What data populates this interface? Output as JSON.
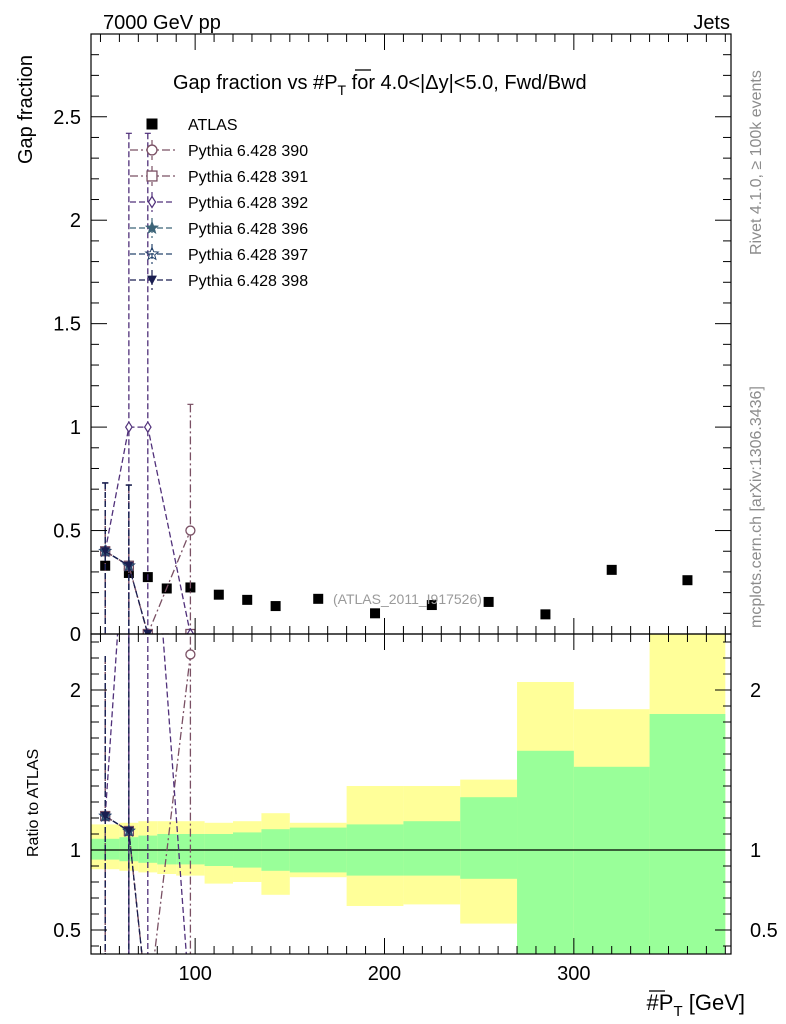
{
  "header": {
    "left": "7000 GeV pp",
    "right": "Jets",
    "rivet": "Rivet 4.1.0, ≥ 100k events",
    "mcplots": "mcplots.cern.ch [arXiv:1306.3436]"
  },
  "chart_data": {
    "type": "scatter",
    "title": "Gap fraction vs #P̅T for 4.0<|Δy|<5.0, Fwd/Bwd",
    "title_parts": {
      "pre": "Gap fraction vs #",
      "P": "P",
      "T": "T",
      "post": " for 4.0<|Δy|<5.0, Fwd/Bwd"
    },
    "xlabel_parts": {
      "pre": "#",
      "P": "P",
      "T": "T",
      "post": " [GeV]"
    },
    "ylabel": "Gap fraction",
    "ratio_ylabel": "Ratio to ATLAS",
    "watermark": "(ATLAS_2011_I917526)",
    "xlim": [
      45,
      383
    ],
    "ylim": [
      0,
      2.9
    ],
    "ratio_ylim": [
      0.35,
      2.35
    ],
    "x_ticks": [
      100,
      200,
      300
    ],
    "y_ticks": [
      0,
      0.5,
      1,
      1.5,
      2,
      2.5
    ],
    "y_tick_labels": [
      "0",
      "0.5",
      "1",
      "1.5",
      "2",
      "2.5"
    ],
    "ratio_ticks": [
      0.5,
      1,
      2
    ],
    "ratio_tick_labels": [
      "0.5",
      "1",
      "2"
    ],
    "colors": {
      "atlas": "#000000",
      "p390": "#7a5064",
      "p391": "#7a5064",
      "p392": "#50307a",
      "p396": "#3c6478",
      "p397": "#28466e",
      "p398": "#1a1e50",
      "band_inner": "#99ff99",
      "band_outer": "#ffff99"
    },
    "atlas": {
      "name": "ATLAS",
      "bins": [
        [
          45,
          60
        ],
        [
          60,
          70
        ],
        [
          70,
          80
        ],
        [
          80,
          90
        ],
        [
          90,
          105
        ],
        [
          105,
          120
        ],
        [
          120,
          135
        ],
        [
          135,
          150
        ],
        [
          150,
          180
        ],
        [
          180,
          210
        ],
        [
          210,
          240
        ],
        [
          240,
          270
        ],
        [
          270,
          300
        ],
        [
          300,
          340
        ],
        [
          340,
          380
        ]
      ],
      "values": [
        0.33,
        0.295,
        0.275,
        0.22,
        0.225,
        0.19,
        0.165,
        0.135,
        0.17,
        0.1,
        0.14,
        0.155,
        0.095,
        0.31,
        0.26
      ],
      "band_inner": [
        [
          0.94,
          1.07
        ],
        [
          0.93,
          1.08
        ],
        [
          0.92,
          1.09
        ],
        [
          0.91,
          1.1
        ],
        [
          0.91,
          1.1
        ],
        [
          0.9,
          1.1
        ],
        [
          0.89,
          1.11
        ],
        [
          0.87,
          1.13
        ],
        [
          0.86,
          1.14
        ],
        [
          0.84,
          1.16
        ],
        [
          0.84,
          1.18
        ],
        [
          0.82,
          1.33
        ],
        [
          0.35,
          1.62
        ],
        [
          0.35,
          1.52
        ],
        [
          0.35,
          1.85
        ]
      ],
      "band_outer": [
        [
          0.88,
          1.16
        ],
        [
          0.87,
          1.17
        ],
        [
          0.86,
          1.18
        ],
        [
          0.85,
          1.18
        ],
        [
          0.84,
          1.18
        ],
        [
          0.79,
          1.17
        ],
        [
          0.8,
          1.18
        ],
        [
          0.72,
          1.23
        ],
        [
          0.83,
          1.17
        ],
        [
          0.65,
          1.4
        ],
        [
          0.66,
          1.4
        ],
        [
          0.54,
          1.44
        ],
        [
          0.44,
          2.05
        ],
        [
          0.58,
          1.88
        ],
        [
          0.35,
          2.35
        ]
      ]
    },
    "series": [
      {
        "name": "Pythia 6.428 390",
        "marker": "circle",
        "dash": "8,3,2,3",
        "x": [
          52.5,
          65,
          75,
          97.5
        ],
        "y": [
          0.4,
          0.33,
          0.0,
          0.5
        ],
        "errlo": [
          0.4,
          0.33,
          0.0,
          0.5
        ],
        "errhi": [
          0.33,
          0.39,
          0.0,
          0.61
        ]
      },
      {
        "name": "Pythia 6.428 391",
        "marker": "square",
        "dash": "8,3,2,3",
        "x": [
          52.5,
          65,
          75,
          97.5
        ],
        "y": [
          0.4,
          0.33,
          0.0,
          0.0
        ],
        "errlo": [
          0.4,
          0.33,
          0.0,
          0.0
        ],
        "errhi": [
          0.33,
          0.39,
          0.0,
          0.0
        ]
      },
      {
        "name": "Pythia 6.428 392",
        "marker": "diamond",
        "dash": "6,3",
        "x": [
          52.5,
          65,
          75,
          97.5
        ],
        "y": [
          0.4,
          1.0,
          1.0,
          0.0
        ],
        "errlo": [
          0.4,
          1.0,
          1.0,
          0.0
        ],
        "errhi": [
          0.33,
          1.42,
          1.42,
          0.0
        ]
      },
      {
        "name": "Pythia 6.428 396",
        "marker": "star",
        "dash": "6,3",
        "x": [
          52.5,
          65
        ],
        "y": [
          0.4,
          0.33
        ],
        "errlo": [
          0.4,
          0.33
        ],
        "errhi": [
          0.33,
          0.39
        ]
      },
      {
        "name": "Pythia 6.428 397",
        "marker": "star-open",
        "dash": "6,3",
        "x": [
          52.5,
          65
        ],
        "y": [
          0.4,
          0.33
        ],
        "errlo": [
          0.4,
          0.33
        ],
        "errhi": [
          0.33,
          0.39
        ]
      },
      {
        "name": "Pythia 6.428 398",
        "marker": "triangle-down",
        "dash": "6,3",
        "x": [
          52.5,
          65,
          75
        ],
        "y": [
          0.4,
          0.33,
          0.0
        ],
        "errlo": [
          0.4,
          0.33,
          0.0
        ],
        "errhi": [
          0.33,
          0.39,
          0.0
        ]
      }
    ]
  }
}
